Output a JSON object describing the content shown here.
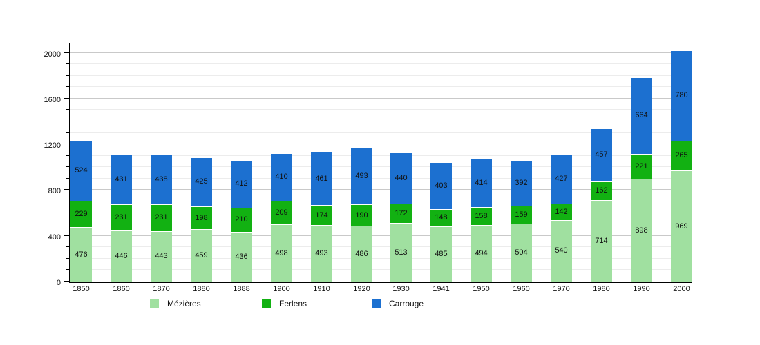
{
  "chart_data": {
    "type": "bar",
    "stacked": true,
    "title": "",
    "xlabel": "",
    "ylabel": "",
    "categories": [
      "1850",
      "1860",
      "1870",
      "1880",
      "1888",
      "1900",
      "1910",
      "1920",
      "1930",
      "1941",
      "1950",
      "1960",
      "1970",
      "1980",
      "1990",
      "2000"
    ],
    "series": [
      {
        "name": "Mézières",
        "color": "#A0E0A0",
        "values": [
          476,
          446,
          443,
          459,
          436,
          498,
          493,
          486,
          513,
          485,
          494,
          504,
          540,
          714,
          898,
          969
        ]
      },
      {
        "name": "Ferlens",
        "color": "#12B112",
        "values": [
          229,
          231,
          231,
          198,
          210,
          209,
          174,
          190,
          172,
          148,
          158,
          159,
          142,
          162,
          221,
          265
        ]
      },
      {
        "name": "Carrouge",
        "color": "#1C70D0",
        "values": [
          524,
          431,
          438,
          425,
          412,
          410,
          461,
          493,
          440,
          403,
          414,
          392,
          427,
          457,
          664,
          780
        ]
      }
    ],
    "ylim": [
      0,
      2100
    ],
    "yticks": [
      0,
      400,
      800,
      1200,
      1600,
      2000
    ],
    "minor_grid_step": 100,
    "grid": true,
    "legend_position": "bottom",
    "bar_label_color": "#111111",
    "axis_color": "#000000",
    "minor_grid_color": "#ececec",
    "major_grid_color": "#c9c9c9"
  },
  "legend_x_positions": [
    217,
    379,
    538
  ]
}
